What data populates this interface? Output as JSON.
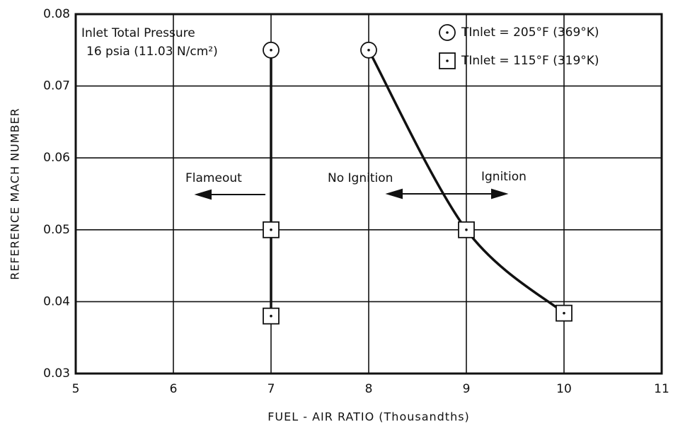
{
  "chart_data": {
    "type": "scatter",
    "xlabel": "FUEL - AIR RATIO (Thousandths)",
    "ylabel": "REFERENCE MACH NUMBER",
    "xlim": [
      5,
      11
    ],
    "xticks": [
      5,
      6,
      7,
      8,
      9,
      10,
      11
    ],
    "ylim": [
      0.03,
      0.08
    ],
    "yticks": [
      0.03,
      0.04,
      0.05,
      0.06,
      0.07,
      0.08
    ],
    "grid": true,
    "series": [
      {
        "name": "TInlet = 205°F (369°K)",
        "color": "#111111",
        "marker": "circle",
        "x": [
          7,
          8
        ],
        "values": [
          0.075,
          0.075
        ]
      },
      {
        "name": "TInlet = 115°F (319°K)",
        "color": "#111111",
        "marker": "square",
        "x": [
          7,
          7,
          9,
          10
        ],
        "values": [
          0.05,
          0.038,
          0.05,
          0.0384
        ]
      }
    ],
    "lines": [
      {
        "x": [
          7,
          7
        ],
        "values": [
          0.075,
          0.038
        ]
      },
      {
        "x": [
          8,
          9,
          10
        ],
        "values": [
          0.075,
          0.05,
          0.0384
        ]
      }
    ],
    "annotations": [
      "Inlet Total Pressure",
      "16 psia (11.03 N/cm²)",
      "Flameout",
      "No Ignition",
      "Ignition"
    ]
  }
}
